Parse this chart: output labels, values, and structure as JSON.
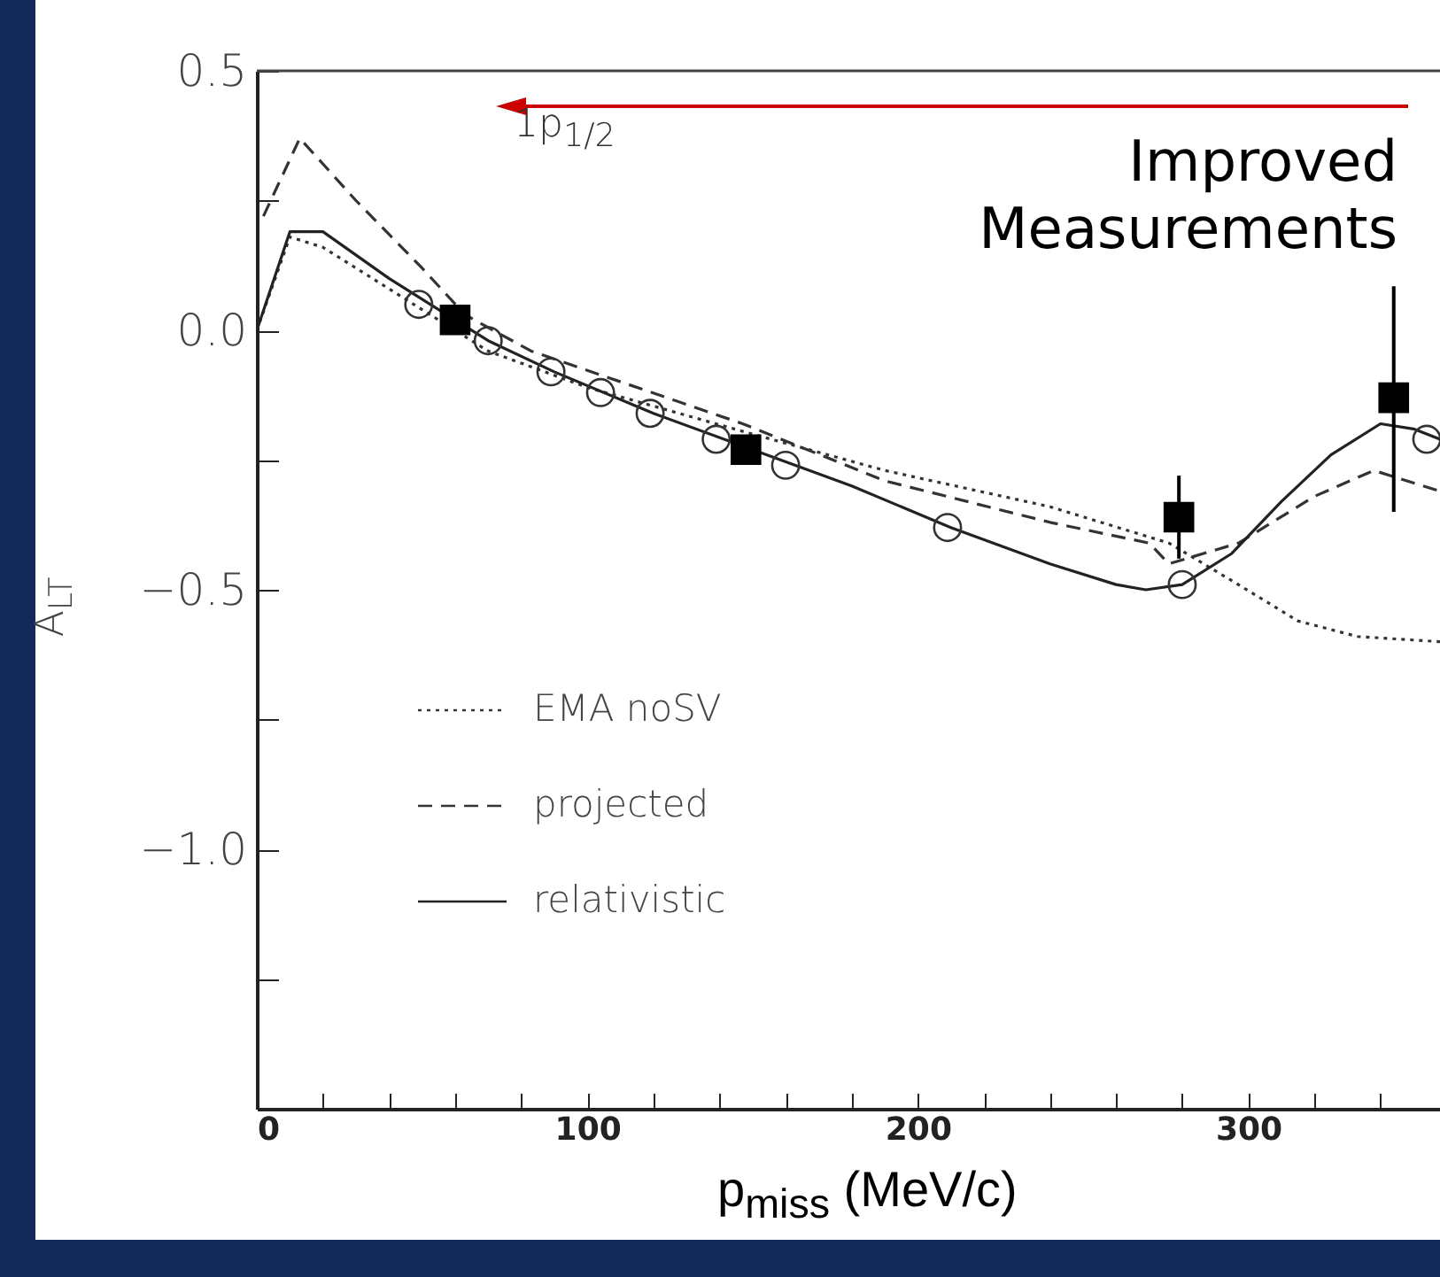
{
  "chart_data": {
    "type": "line",
    "xlabel": "p$_{miss}$ (MeV/c)",
    "ylabel": "A$_{LT}$",
    "annotations": [
      "1p$_{1/2}$",
      "Improved Measurements"
    ],
    "xlim": [
      0,
      358
    ],
    "xticks": [
      0,
      {
        "value": 20,
        "label": null
      },
      {
        "value": 40,
        "label": null
      },
      {
        "value": 60,
        "label": null
      },
      {
        "value": 80,
        "label": null
      },
      100,
      {
        "value": 120,
        "label": null
      },
      {
        "value": 140,
        "label": null
      },
      {
        "value": 160,
        "label": null
      },
      {
        "value": 180,
        "label": null
      },
      200,
      {
        "value": 220,
        "label": null
      },
      {
        "value": 240,
        "label": null
      },
      {
        "value": 260,
        "label": null
      },
      {
        "value": 280,
        "label": null
      },
      300,
      {
        "value": 320,
        "label": null
      },
      {
        "value": 340,
        "label": null
      }
    ],
    "ylim": [
      -1.5,
      0.5
    ],
    "yticks": [
      {
        "value": -1.25,
        "label": null
      },
      {
        "value": -1.0,
        "label": "−1.0"
      },
      {
        "value": -0.75,
        "label": null
      },
      {
        "value": -0.5,
        "label": "−0.5"
      },
      {
        "value": -0.25,
        "label": null
      },
      {
        "value": 0,
        "label": "0.0"
      },
      {
        "value": 0.25,
        "label": null
      },
      {
        "value": 0.5,
        "label": "0.5"
      }
    ],
    "grid": false,
    "legend": "bottom left",
    "series": [
      {
        "name": "EMA noSV",
        "type": "line",
        "line_style": "dotted",
        "color": "#333333",
        "x": [
          0,
          10,
          20,
          30,
          50,
          70,
          100,
          150,
          190,
          240,
          276,
          297,
          315,
          333,
          358
        ],
        "values": [
          0,
          0.18,
          0.16,
          0.12,
          0.04,
          -0.04,
          -0.11,
          -0.2,
          -0.27,
          -0.34,
          -0.41,
          -0.49,
          -0.56,
          -0.59,
          -0.6
        ]
      },
      {
        "name": "projected",
        "type": "line",
        "line_style": "dashed",
        "color": "#333333",
        "x": [
          2,
          13,
          30,
          50,
          63,
          83,
          147,
          190,
          240,
          270,
          276,
          297,
          320,
          338,
          358
        ],
        "values": [
          0.22,
          0.37,
          0.25,
          0.12,
          0.03,
          -0.04,
          -0.18,
          -0.29,
          -0.37,
          -0.41,
          -0.45,
          -0.41,
          -0.32,
          -0.27,
          -0.31
        ]
      },
      {
        "name": "relativistic",
        "type": "line",
        "line_style": "solid",
        "color": "#222222",
        "x": [
          0,
          10,
          20,
          40,
          50,
          70,
          90,
          120,
          150,
          180,
          210,
          240,
          260,
          269,
          280,
          295,
          310,
          325,
          340,
          350,
          358
        ],
        "values": [
          0,
          0.19,
          0.19,
          0.1,
          0.06,
          -0.02,
          -0.08,
          -0.16,
          -0.23,
          -0.3,
          -0.38,
          -0.45,
          -0.49,
          -0.5,
          -0.49,
          -0.43,
          -0.33,
          -0.24,
          -0.18,
          -0.19,
          -0.21
        ]
      },
      {
        "type": "scatter",
        "marker": "circle",
        "color": "#333333",
        "x": [
          49,
          70,
          89,
          104,
          119,
          139,
          160,
          209,
          280,
          354
        ],
        "values": [
          0.05,
          -0.02,
          -0.08,
          -0.12,
          -0.16,
          -0.21,
          -0.26,
          -0.38,
          -0.49,
          -0.21
        ]
      },
      {
        "type": "scatter",
        "marker": "square",
        "color": "#000000",
        "x": [
          60,
          148,
          279,
          344
        ],
        "values": [
          0.02,
          -0.23,
          -0.36,
          -0.13
        ],
        "errors": [
          null,
          null,
          [
            -0.44,
            -0.28
          ],
          [
            -0.35,
            0.085
          ]
        ]
      }
    ]
  }
}
